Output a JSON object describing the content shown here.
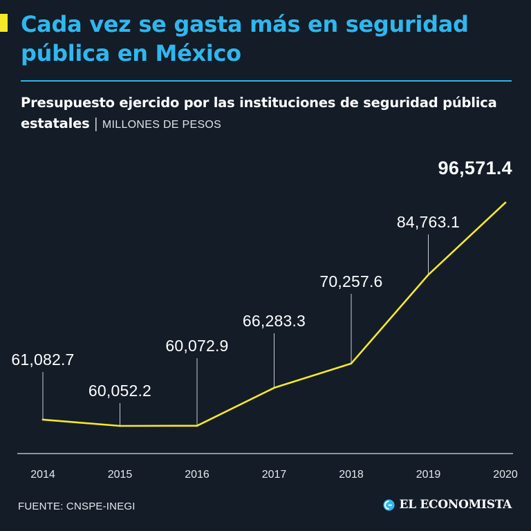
{
  "header": {
    "title": "Cada vez se gasta más en seguridad pública en México",
    "subtitle_main": "Presupuesto ejercido por las instituciones de seguridad pública estatales",
    "subtitle_separator": "|",
    "subtitle_unit": "MILLONES DE PESOS"
  },
  "chart_data": {
    "type": "line",
    "title": "Cada vez se gasta más en seguridad pública en México",
    "subtitle": "Presupuesto ejercido por las instituciones de seguridad pública estatales | MILLONES DE PESOS",
    "x": [
      "2014",
      "2015",
      "2016",
      "2017",
      "2018",
      "2019",
      "2020"
    ],
    "series": [
      {
        "values": [
          61082.7,
          60052.2,
          60072.9,
          66283.3,
          70257.6,
          84763.1,
          96571.4
        ],
        "labels": [
          "61,082.7",
          "60,052.2",
          "60,072.9",
          "66,283.3",
          "70,257.6",
          "84,763.1",
          "96,571.4"
        ]
      }
    ],
    "line_color": "#f7e92a",
    "grid": false,
    "legend": "none"
  },
  "footer": {
    "source": "FUENTE: CNSPE-INEGI",
    "brand": "EL ECONOMISTA",
    "brand_icon": "el-economista-logo-icon"
  },
  "colors": {
    "background": "#131c27",
    "accent": "#2fb7ee",
    "highlight": "#f7e92a"
  }
}
